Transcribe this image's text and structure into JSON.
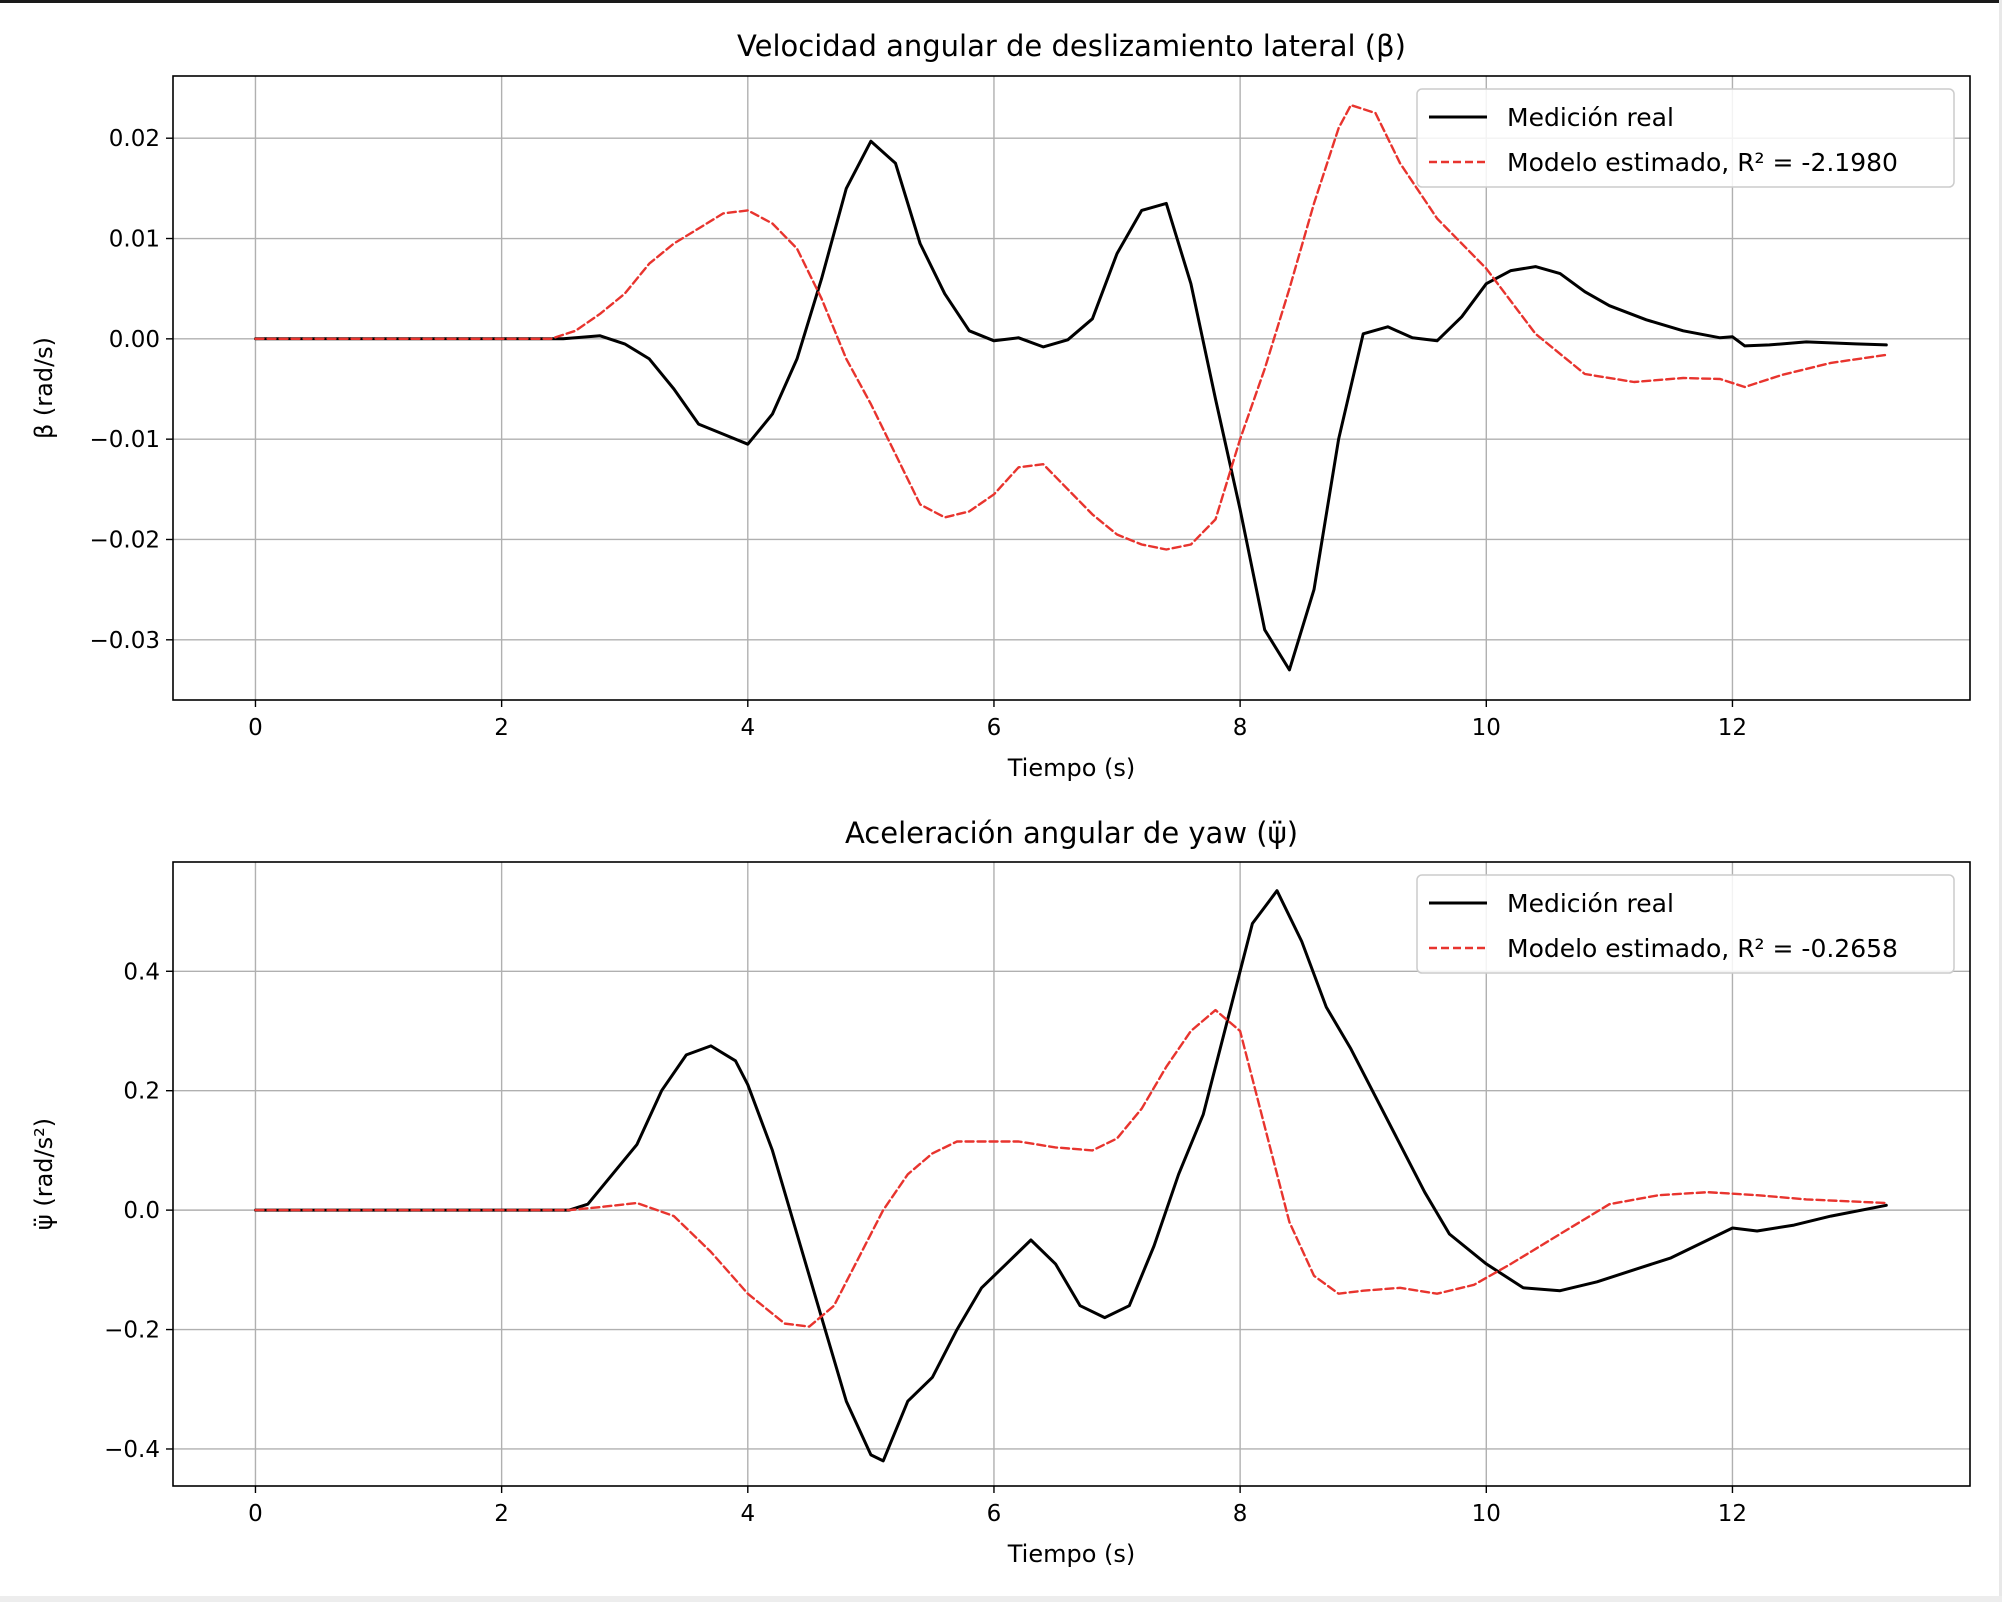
{
  "chart_data": [
    {
      "type": "line",
      "title": "Velocidad angular de deslizamiento lateral (β)",
      "xlabel": "Tiempo (s)",
      "ylabel": "β (rad/s)",
      "xlim": [
        -0.67,
        13.93
      ],
      "ylim": [
        -0.036,
        0.0262
      ],
      "xticks": [
        0,
        2,
        4,
        6,
        8,
        10,
        12
      ],
      "xtick_labels": [
        "0",
        "2",
        "4",
        "6",
        "8",
        "10",
        "12"
      ],
      "yticks": [
        0.02,
        0.01,
        0.0,
        -0.01,
        -0.02,
        -0.03
      ],
      "ytick_labels": [
        "0.02",
        "0.01",
        "0.00",
        "−0.01",
        "−0.02",
        "−0.03"
      ],
      "grid": true,
      "legend_position": "top-right",
      "series": [
        {
          "name": "Medición real",
          "color": "#000000",
          "style": "solid",
          "x": [
            0,
            2.5,
            2.8,
            3.0,
            3.2,
            3.4,
            3.6,
            3.8,
            4.0,
            4.2,
            4.4,
            4.6,
            4.8,
            5.0,
            5.2,
            5.4,
            5.6,
            5.8,
            6.0,
            6.2,
            6.4,
            6.6,
            6.8,
            7.0,
            7.2,
            7.4,
            7.6,
            7.8,
            8.0,
            8.2,
            8.4,
            8.6,
            8.8,
            9.0,
            9.2,
            9.4,
            9.6,
            9.8,
            10.0,
            10.2,
            10.4,
            10.6,
            10.8,
            11.0,
            11.3,
            11.6,
            11.9,
            12.0,
            12.1,
            12.3,
            12.6,
            13.0,
            13.25
          ],
          "y": [
            0,
            0,
            0.0003,
            -0.0005,
            -0.002,
            -0.005,
            -0.0085,
            -0.0095,
            -0.0105,
            -0.0075,
            -0.002,
            0.006,
            0.015,
            0.0197,
            0.0175,
            0.0095,
            0.0045,
            0.0008,
            -0.0002,
            0.0001,
            -0.0008,
            -0.0001,
            0.002,
            0.0085,
            0.0128,
            0.0135,
            0.0055,
            -0.006,
            -0.017,
            -0.029,
            -0.033,
            -0.025,
            -0.01,
            0.0005,
            0.0012,
            0.0001,
            -0.0002,
            0.0022,
            0.0055,
            0.0068,
            0.0072,
            0.0065,
            0.0047,
            0.0033,
            0.0019,
            0.0008,
            0.0001,
            0.0002,
            -0.0007,
            -0.0006,
            -0.0003,
            -0.0005,
            -0.0006
          ]
        },
        {
          "name": "Modelo estimado, R² = -2.1980",
          "color": "#e8342e",
          "style": "dashed",
          "x": [
            0,
            2.4,
            2.6,
            2.8,
            3.0,
            3.2,
            3.4,
            3.6,
            3.8,
            4.0,
            4.2,
            4.4,
            4.6,
            4.8,
            5.0,
            5.2,
            5.4,
            5.6,
            5.8,
            6.0,
            6.2,
            6.4,
            6.6,
            6.8,
            7.0,
            7.2,
            7.4,
            7.6,
            7.8,
            8.0,
            8.2,
            8.4,
            8.6,
            8.8,
            8.9,
            9.1,
            9.3,
            9.6,
            10.0,
            10.4,
            10.8,
            11.2,
            11.6,
            11.9,
            12.1,
            12.4,
            12.8,
            13.25
          ],
          "y": [
            0,
            0,
            0.0008,
            0.0025,
            0.0045,
            0.0075,
            0.0095,
            0.011,
            0.0125,
            0.0128,
            0.0115,
            0.009,
            0.004,
            -0.002,
            -0.0065,
            -0.0115,
            -0.0165,
            -0.0178,
            -0.0172,
            -0.0155,
            -0.0128,
            -0.0125,
            -0.015,
            -0.0175,
            -0.0195,
            -0.0205,
            -0.021,
            -0.0205,
            -0.018,
            -0.01,
            -0.003,
            0.005,
            0.0135,
            0.021,
            0.0233,
            0.0225,
            0.0175,
            0.012,
            0.007,
            0.0005,
            -0.0035,
            -0.0043,
            -0.0039,
            -0.004,
            -0.0048,
            -0.0036,
            -0.0024,
            -0.0016
          ]
        }
      ]
    },
    {
      "type": "line",
      "title": "Aceleración angular de yaw (ψ̈)",
      "xlabel": "Tiempo (s)",
      "ylabel": "ψ̈ (rad/s²)",
      "xlim": [
        -0.67,
        13.93
      ],
      "ylim": [
        -0.462,
        0.583
      ],
      "xticks": [
        0,
        2,
        4,
        6,
        8,
        10,
        12
      ],
      "xtick_labels": [
        "0",
        "2",
        "4",
        "6",
        "8",
        "10",
        "12"
      ],
      "yticks": [
        0.4,
        0.2,
        0.0,
        -0.2,
        -0.4
      ],
      "ytick_labels": [
        "0.4",
        "0.2",
        "0.0",
        "−0.2",
        "−0.4"
      ],
      "grid": true,
      "legend_position": "top-right",
      "series": [
        {
          "name": "Medición real",
          "color": "#000000",
          "style": "solid",
          "x": [
            0,
            2.55,
            2.7,
            2.9,
            3.1,
            3.3,
            3.5,
            3.7,
            3.9,
            4.0,
            4.2,
            4.4,
            4.6,
            4.8,
            5.0,
            5.1,
            5.3,
            5.5,
            5.7,
            5.9,
            6.1,
            6.3,
            6.5,
            6.7,
            6.9,
            7.1,
            7.3,
            7.5,
            7.7,
            7.9,
            8.1,
            8.3,
            8.5,
            8.7,
            8.9,
            9.1,
            9.3,
            9.5,
            9.7,
            10.0,
            10.3,
            10.6,
            10.9,
            11.2,
            11.5,
            11.8,
            11.9,
            12.0,
            12.2,
            12.5,
            12.8,
            13.25
          ],
          "y": [
            0,
            0,
            0.01,
            0.06,
            0.11,
            0.2,
            0.26,
            0.275,
            0.25,
            0.21,
            0.1,
            -0.04,
            -0.18,
            -0.32,
            -0.41,
            -0.42,
            -0.32,
            -0.28,
            -0.2,
            -0.13,
            -0.09,
            -0.05,
            -0.09,
            -0.16,
            -0.18,
            -0.16,
            -0.06,
            0.06,
            0.16,
            0.32,
            0.48,
            0.535,
            0.45,
            0.34,
            0.27,
            0.19,
            0.11,
            0.03,
            -0.04,
            -0.09,
            -0.13,
            -0.135,
            -0.12,
            -0.1,
            -0.08,
            -0.05,
            -0.04,
            -0.03,
            -0.035,
            -0.025,
            -0.01,
            0.008
          ]
        },
        {
          "name": "Modelo estimado, R² = -0.2658",
          "color": "#e8342e",
          "style": "dashed",
          "x": [
            0,
            2.55,
            2.8,
            3.1,
            3.4,
            3.7,
            4.0,
            4.3,
            4.5,
            4.7,
            4.9,
            5.1,
            5.3,
            5.5,
            5.7,
            5.9,
            6.2,
            6.5,
            6.8,
            7.0,
            7.2,
            7.4,
            7.6,
            7.8,
            8.0,
            8.2,
            8.4,
            8.6,
            8.8,
            9.0,
            9.3,
            9.6,
            9.9,
            10.2,
            10.6,
            11.0,
            11.4,
            11.8,
            12.2,
            12.6,
            13.25
          ],
          "y": [
            0,
            0,
            0.005,
            0.012,
            -0.01,
            -0.07,
            -0.14,
            -0.19,
            -0.195,
            -0.16,
            -0.08,
            0.0,
            0.06,
            0.095,
            0.115,
            0.115,
            0.115,
            0.105,
            0.1,
            0.12,
            0.17,
            0.24,
            0.3,
            0.335,
            0.3,
            0.14,
            -0.02,
            -0.11,
            -0.14,
            -0.135,
            -0.13,
            -0.14,
            -0.125,
            -0.09,
            -0.04,
            0.01,
            0.025,
            0.03,
            0.025,
            0.018,
            0.012
          ]
        }
      ]
    }
  ]
}
